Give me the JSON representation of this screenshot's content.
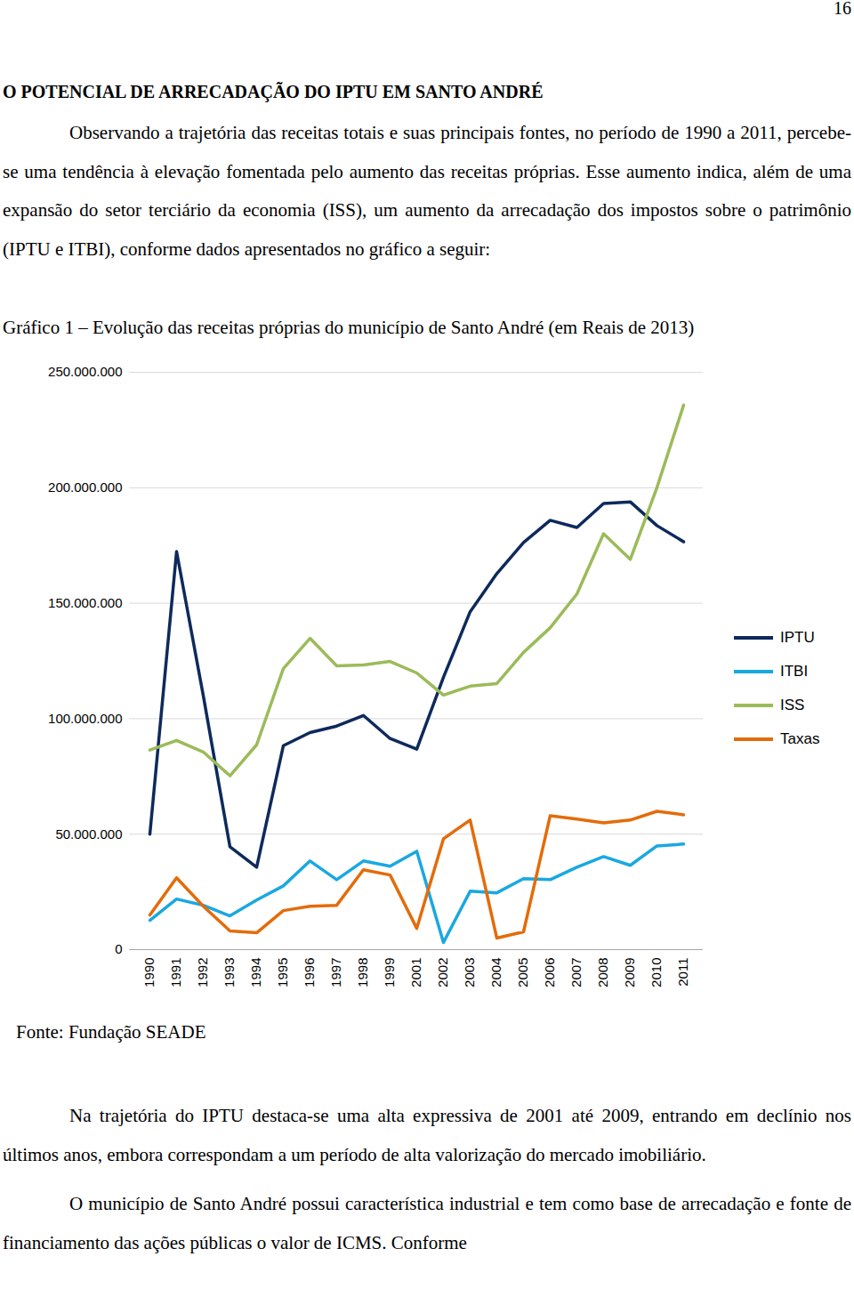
{
  "page_number": "16",
  "heading": "O POTENCIAL DE ARRECADAÇÃO DO IPTU EM SANTO ANDRÉ",
  "paragraphs_before": [
    "Observando a trajetória das receitas totais e suas principais fontes, no período de 1990 a 2011, percebe-se uma tendência à elevação fomentada pelo aumento das receitas próprias. Esse aumento indica, além de uma expansão do setor terciário da economia (ISS), um aumento da arrecadação dos impostos sobre o patrimônio (IPTU e ITBI), conforme dados apresentados no gráfico a seguir:"
  ],
  "figure_caption": "Gráfico 1 – Evolução das receitas próprias do município de Santo André (em Reais de 2013)",
  "chart_data": {
    "type": "line",
    "categories": [
      "1990",
      "1991",
      "1992",
      "1993",
      "1994",
      "1995",
      "1996",
      "1997",
      "1998",
      "1999",
      "2001",
      "2002",
      "2003",
      "2004",
      "2005",
      "2006",
      "2007",
      "2008",
      "2009",
      "2010",
      "2011"
    ],
    "series": [
      {
        "name": "IPTU",
        "color": "#0e2a5c",
        "values": [
          50000000,
          172400000,
          110000000,
          44500000,
          35700000,
          88300000,
          94000000,
          96800000,
          101400000,
          91400000,
          86800000,
          117900000,
          146300000,
          162800000,
          176300000,
          185900000,
          182800000,
          193200000,
          193900000,
          183600000,
          176600000
        ]
      },
      {
        "name": "ITBI",
        "color": "#1aa8e0",
        "values": [
          12700000,
          21900000,
          19200000,
          14600000,
          21500000,
          27600000,
          38400000,
          30300000,
          38400000,
          36100000,
          42600000,
          3100000,
          25300000,
          24600000,
          30700000,
          30300000,
          35700000,
          40300000,
          36500000,
          44900000,
          45700000
        ]
      },
      {
        "name": "ISS",
        "color": "#9bbb59",
        "values": [
          86400000,
          90600000,
          85600000,
          75300000,
          88700000,
          121700000,
          134800000,
          122900000,
          123300000,
          124800000,
          119800000,
          110200000,
          114100000,
          115200000,
          128700000,
          139400000,
          154000000,
          180100000,
          169000000,
          200100000,
          235800000
        ]
      },
      {
        "name": "Taxas",
        "color": "#e36c0a",
        "values": [
          15000000,
          31100000,
          18800000,
          8100000,
          7300000,
          16900000,
          18800000,
          19200000,
          34600000,
          32300000,
          9200000,
          48000000,
          56100000,
          5000000,
          7700000,
          58000000,
          56500000,
          54900000,
          56100000,
          59900000,
          58400000
        ]
      }
    ],
    "ylim": [
      0,
      250000000
    ],
    "yticks": [
      0,
      {
        "value": 50000000,
        "label": "50.000.000"
      },
      {
        "value": 100000000,
        "label": "100.000.000"
      },
      {
        "value": 150000000,
        "label": "150.000.000"
      },
      {
        "value": 200000000,
        "label": "200.000.000"
      },
      {
        "value": 250000000,
        "label": "250.000.000"
      }
    ],
    "grid": true,
    "legend": "right"
  },
  "source": "Fonte: Fundação SEADE",
  "paragraphs_after": [
    "Na trajetória do IPTU destaca-se uma alta expressiva de 2001 até 2009, entrando em declínio nos últimos anos, embora correspondam a um período de alta valorização do mercado imobiliário.",
    "O município de Santo André possui característica industrial e tem como base de arrecadação e fonte de financiamento das ações públicas o valor de ICMS. Conforme"
  ]
}
